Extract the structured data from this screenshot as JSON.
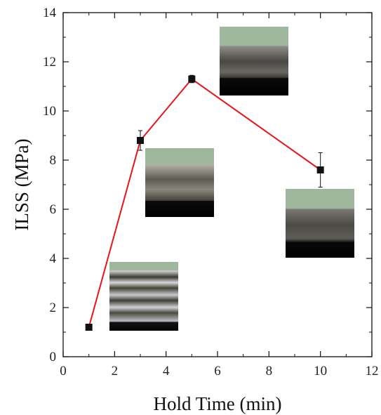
{
  "chart_data": {
    "type": "line",
    "title": "",
    "xlabel": "Hold Time (min)",
    "ylabel": "ILSS (MPa)",
    "xlim": [
      0,
      12
    ],
    "ylim": [
      0,
      14
    ],
    "x_ticks": [
      0,
      2,
      4,
      6,
      8,
      10,
      12
    ],
    "y_ticks": [
      0,
      2,
      4,
      6,
      8,
      10,
      12,
      14
    ],
    "grid": false,
    "legend": "none",
    "series": [
      {
        "color": "#e8141a",
        "marker": "square",
        "marker_color": "#111111",
        "x": [
          1,
          3,
          5,
          10
        ],
        "y": [
          1.2,
          8.8,
          11.3,
          7.6
        ],
        "error": [
          0.05,
          0.4,
          0.15,
          0.7
        ]
      }
    ],
    "inset_images": [
      {
        "description": "micrograph",
        "near_x": 1
      },
      {
        "description": "micrograph",
        "near_x": 3
      },
      {
        "description": "micrograph",
        "near_x": 5
      },
      {
        "description": "micrograph",
        "near_x": 10
      }
    ]
  }
}
